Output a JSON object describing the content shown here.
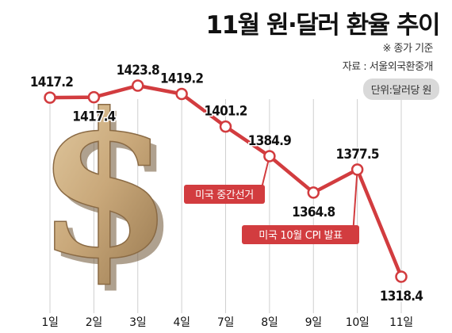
{
  "title": "11월 원·달러 환율 추이",
  "note": "※ 종가 기준",
  "source": "자료 : 서울외국환중개",
  "unit": "단위:달러당 원",
  "colors": {
    "line": "#d23c3f",
    "label_box": "#d23c3f",
    "grid": "#cfcfcf"
  },
  "icons": {
    "illustration": "gold-dollar-sign-icon"
  },
  "chart_data": {
    "type": "line",
    "categories": [
      "1일",
      "2일",
      "3일",
      "4일",
      "7일",
      "8일",
      "9일",
      "10일",
      "11일"
    ],
    "values": [
      1417.2,
      1417.4,
      1423.8,
      1419.2,
      1401.2,
      1384.9,
      1364.8,
      1377.5,
      1318.4
    ],
    "value_labels": [
      "1417.2",
      "1417.4",
      "1423.8",
      "1419.2",
      "1401.2",
      "1384.9",
      "1364.8",
      "1377.5",
      "1318.4"
    ],
    "annotations": [
      {
        "text": "미국 중간선거",
        "category": "8일"
      },
      {
        "text": "미국 10월 CPI 발표",
        "category": "10일"
      }
    ],
    "grid": true,
    "legend": "none"
  }
}
